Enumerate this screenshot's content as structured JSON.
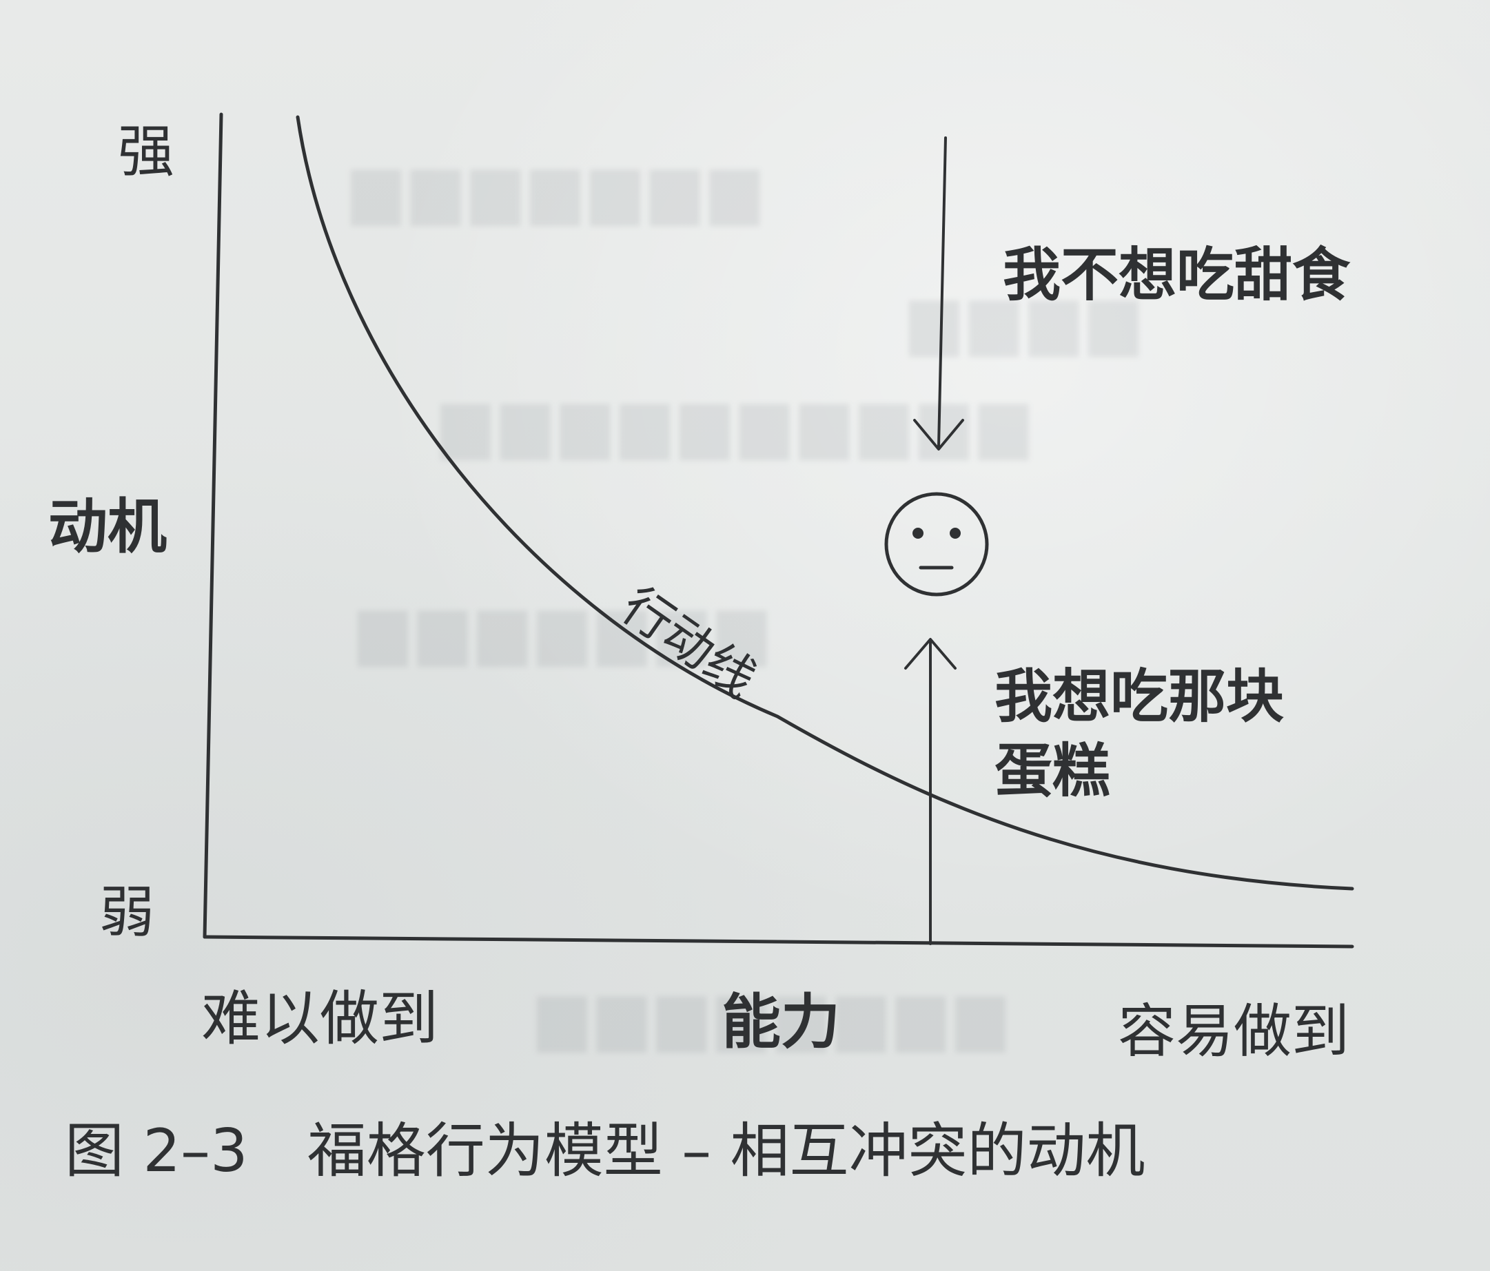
{
  "diagram": {
    "labels": {
      "strong": "强",
      "motivation": "动机",
      "weak": "弱",
      "hard_to_do": "难以做到",
      "ability": "能力",
      "easy_to_do": "容易做到",
      "action_line": "行动线",
      "dont_want_sweets": "我不想吃甜食",
      "want_cake_line1": "我想吃那块",
      "want_cake_line2": "蛋糕"
    },
    "icon": "neutral-face-icon"
  },
  "caption": {
    "text": "图 2–3　福格行为模型 – 相互冲突的动机"
  },
  "colors": {
    "ink": "#2f3133",
    "paper": "#e5e7e6"
  }
}
